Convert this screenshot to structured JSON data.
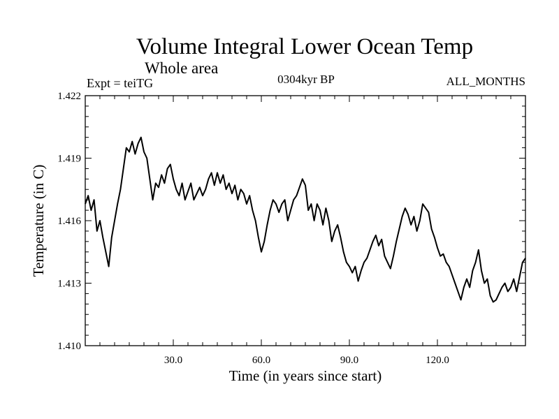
{
  "chart_data": {
    "type": "line",
    "title": "Volume Integral Lower Ocean Temp",
    "subtitle": "Whole area",
    "experiment_label": "Expt = teiTG",
    "period_label": "0304kyr BP",
    "months_label": "ALL_MONTHS",
    "xlabel": "Time (in years since start)",
    "ylabel": "Temperature (in C)",
    "xlim": [
      0,
      150
    ],
    "ylim": [
      1.41,
      1.422
    ],
    "x_ticks": [
      30,
      60,
      90,
      120
    ],
    "x_tick_labels": [
      "30.0",
      "60.0",
      "90.0",
      "120.0"
    ],
    "y_ticks": [
      1.41,
      1.413,
      1.416,
      1.419,
      1.422
    ],
    "y_tick_labels": [
      "1.410",
      "1.413",
      "1.416",
      "1.419",
      "1.422"
    ],
    "grid": false,
    "series": [
      {
        "name": "Volume Integral Lower Ocean Temp",
        "color": "#000000",
        "x": [
          0,
          1,
          2,
          3,
          4,
          5,
          6,
          7,
          8,
          9,
          10,
          11,
          12,
          13,
          14,
          15,
          16,
          17,
          18,
          19,
          20,
          21,
          22,
          23,
          24,
          25,
          26,
          27,
          28,
          29,
          30,
          31,
          32,
          33,
          34,
          35,
          36,
          37,
          38,
          39,
          40,
          41,
          42,
          43,
          44,
          45,
          46,
          47,
          48,
          49,
          50,
          51,
          52,
          53,
          54,
          55,
          56,
          57,
          58,
          59,
          60,
          61,
          62,
          63,
          64,
          65,
          66,
          67,
          68,
          69,
          70,
          71,
          72,
          73,
          74,
          75,
          76,
          77,
          78,
          79,
          80,
          81,
          82,
          83,
          84,
          85,
          86,
          87,
          88,
          89,
          90,
          91,
          92,
          93,
          94,
          95,
          96,
          97,
          98,
          99,
          100,
          101,
          102,
          103,
          104,
          105,
          106,
          107,
          108,
          109,
          110,
          111,
          112,
          113,
          114,
          115,
          116,
          117,
          118,
          119,
          120,
          121,
          122,
          123,
          124,
          125,
          126,
          127,
          128,
          129,
          130,
          131,
          132,
          133,
          134,
          135,
          136,
          137,
          138,
          139,
          140,
          141,
          142,
          143,
          144,
          145,
          146,
          147,
          148,
          149,
          150
        ],
        "values": [
          1.4168,
          1.4172,
          1.4165,
          1.417,
          1.4155,
          1.416,
          1.4152,
          1.4145,
          1.4138,
          1.4152,
          1.416,
          1.4168,
          1.4175,
          1.4185,
          1.4195,
          1.4193,
          1.4198,
          1.4192,
          1.4197,
          1.42,
          1.4193,
          1.419,
          1.418,
          1.417,
          1.4178,
          1.4176,
          1.4182,
          1.4178,
          1.4185,
          1.4187,
          1.418,
          1.4175,
          1.4172,
          1.4178,
          1.417,
          1.4174,
          1.4178,
          1.417,
          1.4173,
          1.4176,
          1.4172,
          1.4175,
          1.418,
          1.4183,
          1.4177,
          1.4183,
          1.4178,
          1.4182,
          1.4175,
          1.4178,
          1.4173,
          1.4177,
          1.417,
          1.4175,
          1.4173,
          1.4168,
          1.4172,
          1.4165,
          1.416,
          1.4152,
          1.4145,
          1.415,
          1.4158,
          1.4165,
          1.417,
          1.4168,
          1.4164,
          1.4168,
          1.417,
          1.416,
          1.4165,
          1.417,
          1.4172,
          1.4176,
          1.418,
          1.4177,
          1.4165,
          1.4168,
          1.416,
          1.4168,
          1.4165,
          1.4158,
          1.4166,
          1.416,
          1.415,
          1.4155,
          1.4158,
          1.4152,
          1.4145,
          1.414,
          1.4138,
          1.4135,
          1.4138,
          1.4131,
          1.4136,
          1.414,
          1.4142,
          1.4146,
          1.415,
          1.4153,
          1.4148,
          1.4151,
          1.4143,
          1.414,
          1.4137,
          1.4143,
          1.415,
          1.4156,
          1.4162,
          1.4166,
          1.4163,
          1.4158,
          1.4162,
          1.4155,
          1.416,
          1.4168,
          1.4166,
          1.4164,
          1.4156,
          1.4152,
          1.4147,
          1.4143,
          1.4144,
          1.414,
          1.4138,
          1.4134,
          1.413,
          1.4126,
          1.4122,
          1.4128,
          1.4132,
          1.4128,
          1.4136,
          1.414,
          1.4146,
          1.4136,
          1.413,
          1.4132,
          1.4124,
          1.4121,
          1.4122,
          1.4125,
          1.4128,
          1.413,
          1.4126,
          1.4128,
          1.4132,
          1.4126,
          1.4133,
          1.414,
          1.4142
        ]
      }
    ]
  }
}
